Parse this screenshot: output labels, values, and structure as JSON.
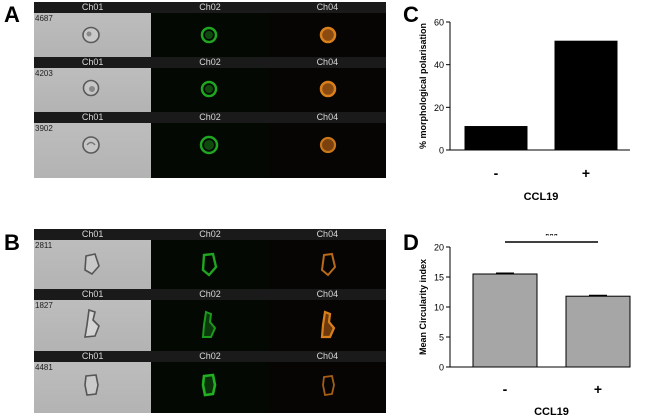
{
  "panel_labels": {
    "a": "A",
    "b": "B",
    "c": "C",
    "d": "D"
  },
  "channels": [
    "Ch01",
    "Ch02",
    "Ch04"
  ],
  "panel_a_rows": [
    {
      "id": "4687"
    },
    {
      "id": "4203"
    },
    {
      "id": "3902"
    }
  ],
  "panel_b_rows": [
    {
      "id": "2811"
    },
    {
      "id": "1827"
    },
    {
      "id": "4481"
    }
  ],
  "colors": {
    "fluor_green": "#1fa51f",
    "fluor_orange": "#d9801c",
    "bar_c": "#000000",
    "bar_d": "#a6a6a6"
  },
  "chart_data": [
    {
      "type": "bar",
      "panel": "C",
      "title": "",
      "categories": [
        "-",
        "+"
      ],
      "values": [
        11,
        51
      ],
      "xlabel": "CCL19",
      "ylabel": "% morphological polarisation",
      "ylim": [
        0,
        60
      ],
      "yticks": [
        "0",
        "20",
        "40",
        "60"
      ],
      "grid": false
    },
    {
      "type": "bar",
      "panel": "D",
      "title": "",
      "categories": [
        "-",
        "+"
      ],
      "values": [
        15.5,
        11.8
      ],
      "errors": [
        0.12,
        0.12
      ],
      "xlabel": "CCL19",
      "ylabel": "Mean Circularity index",
      "ylim": [
        0,
        20
      ],
      "yticks": [
        "0",
        "5",
        "10",
        "15",
        "20"
      ],
      "significance": "***",
      "grid": false
    }
  ]
}
